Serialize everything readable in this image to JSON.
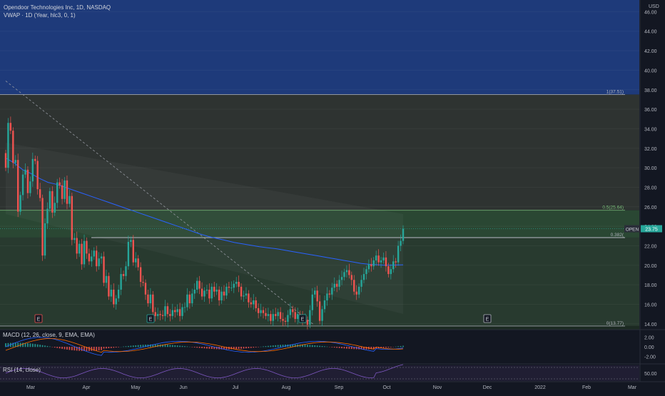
{
  "header": {
    "title": "Opendoor Technologies Inc, 1D, NASDAQ",
    "vwap": "VWAP · 1D (Year, hlc3, 0, 1)",
    "currency": "USD"
  },
  "indicators": {
    "macd": "MACD (12, 26, close, 9, EMA, EMA)",
    "rsi": "RSI (14, close)"
  },
  "colors": {
    "up": "#26a69a",
    "down": "#ef5350",
    "vwap": "#2962ff",
    "fib_top_zone": "#1e3a7a",
    "fib_mid_zone": "#2e3331",
    "fib_green_zone": "#283a2f",
    "background": "#131722",
    "symbol_tag": "#26a69a"
  },
  "chart_data": [
    {
      "type": "candlestick",
      "symbol": "OPEN",
      "last_price": "23.75",
      "y_ticks": [
        "14.00",
        "16.00",
        "18.00",
        "20.00",
        "22.00",
        "24.00",
        "26.00",
        "28.00",
        "30.00",
        "32.00",
        "34.00",
        "36.00",
        "38.00",
        "40.00",
        "42.00",
        "44.00",
        "46.00"
      ],
      "x_ticks": [
        "Mar",
        "Apr",
        "May",
        "Jun",
        "Jul",
        "Aug",
        "Sep",
        "Oct",
        "Nov",
        "Dec",
        "2022",
        "Feb",
        "Mar"
      ],
      "ylim": [
        13.4,
        47.2
      ],
      "fib_levels": [
        {
          "label": "1(37.51)",
          "value": 37.51
        },
        {
          "label": "0.5(25.64)",
          "value": 25.64
        },
        {
          "label": "0.382(",
          "value": 22.84
        },
        {
          "label": "0(13.77)",
          "value": 13.77
        }
      ],
      "earnings_markers": [
        "E",
        "E",
        "E",
        "E"
      ],
      "close_series": [
        30.0,
        34.6,
        33.8,
        30.5,
        30.8,
        25.5,
        27.2,
        29.3,
        29.8,
        27.4,
        28.6,
        30.9,
        30.7,
        27.8,
        26.9,
        21.0,
        24.3,
        25.8,
        27.6,
        25.4,
        26.4,
        28.5,
        28.2,
        26.8,
        28.7,
        26.3,
        27.1,
        22.6,
        22.8,
        21.2,
        22.2,
        20.1,
        22.5,
        21.2,
        20.4,
        20.9,
        21.5,
        19.9,
        20.7,
        20.9,
        18.2,
        18.9,
        16.8,
        17.5,
        16.0,
        16.6,
        17.5,
        19.1,
        18.9,
        19.9,
        22.4,
        22.6,
        20.3,
        20.7,
        19.8,
        18.3,
        18.2,
        17.0,
        16.1,
        17.0,
        15.2,
        14.8,
        15.0,
        14.9,
        14.8,
        15.8,
        15.0,
        14.8,
        15.4,
        15.2,
        15.5,
        14.8,
        15.7,
        15.7,
        17.0,
        16.1,
        17.1,
        17.5,
        18.4,
        17.6,
        16.8,
        17.4,
        17.5,
        16.6,
        17.8,
        17.3,
        17.5,
        16.4,
        17.3,
        16.9,
        17.8,
        17.7,
        17.7,
        18.1,
        18.3,
        17.8,
        16.8,
        16.9,
        17.1,
        16.2,
        16.0,
        16.4,
        15.6,
        15.1,
        15.4,
        15.1,
        14.8,
        15.0,
        14.3,
        15.0,
        14.8,
        15.2,
        14.5,
        14.3,
        14.2,
        14.9,
        15.5,
        15.2,
        14.5,
        15.0,
        14.8,
        14.4,
        14.4,
        13.9,
        15.4,
        17.0,
        17.4,
        16.3,
        14.3,
        15.5,
        16.4,
        17.1,
        17.0,
        17.7,
        18.1,
        17.8,
        18.5,
        18.8,
        19.3,
        19.5,
        19.0,
        18.5,
        17.3,
        17.0,
        17.8,
        18.5,
        19.1,
        19.6,
        20.1,
        19.9,
        20.5,
        21.0,
        20.3,
        20.5,
        20.8,
        19.9,
        19.1,
        19.6,
        20.4,
        20.3,
        22.0,
        22.5,
        23.75
      ],
      "vwap_series": [
        31.0,
        30.5,
        29.8,
        29.4,
        28.9,
        28.5,
        28.3,
        28.0,
        27.7,
        27.4,
        27.1,
        26.8,
        26.5,
        26.2,
        25.9,
        25.6,
        25.3,
        25.0,
        24.7,
        24.4,
        24.1,
        23.8,
        23.5,
        23.2,
        22.95,
        22.75,
        22.55,
        22.35,
        22.2,
        22.05,
        21.9,
        21.8,
        21.7,
        21.55,
        21.4,
        21.25,
        21.1,
        20.95,
        20.8,
        20.65,
        20.5,
        20.35,
        20.2,
        20.1,
        20.05,
        20.0,
        20.02,
        20.05
      ],
      "macd_ylim": [
        -3.5,
        3.5
      ],
      "macd_ticks": [
        "2.00",
        "0.00",
        "-2.00"
      ],
      "rsi_ticks": [
        "50.00"
      ]
    }
  ]
}
